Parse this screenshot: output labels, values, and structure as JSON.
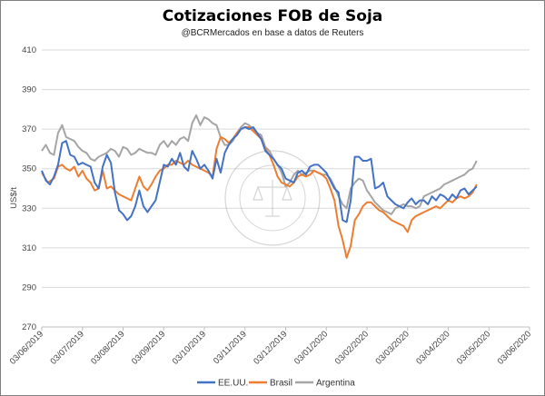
{
  "chart_data": {
    "type": "line",
    "title": "Cotizaciones FOB de Soja",
    "subtitle": "@BCRMercados en base a datos de Reuters",
    "ylabel": "US$/t",
    "xlabel": "",
    "ylim": [
      270,
      410
    ],
    "yticks": [
      270,
      290,
      310,
      330,
      350,
      370,
      390,
      410
    ],
    "xtick_labels": [
      "03/06/2019",
      "03/07/2019",
      "03/08/2019",
      "03/09/2019",
      "03/10/2019",
      "03/11/2019",
      "03/12/2019",
      "03/01/2020",
      "03/02/2020",
      "03/03/2020",
      "03/04/2020",
      "03/05/2020",
      "03/06/2020"
    ],
    "grid": "horizontal",
    "legend_position": "bottom",
    "watermark": "BOLSA DE COMERCIO DE ROSARIO",
    "series": [
      {
        "name": "EE.UU.",
        "color": "#4472C4",
        "points": [
          [
            0.0,
            349
          ],
          [
            0.2,
            344
          ],
          [
            0.4,
            342
          ],
          [
            0.6,
            346
          ],
          [
            0.8,
            352
          ],
          [
            1.0,
            363
          ],
          [
            1.2,
            364
          ],
          [
            1.4,
            357
          ],
          [
            1.6,
            356
          ],
          [
            1.8,
            352
          ],
          [
            2.0,
            353
          ],
          [
            2.2,
            352
          ],
          [
            2.4,
            351
          ],
          [
            2.6,
            343
          ],
          [
            2.8,
            340
          ],
          [
            3.0,
            351
          ],
          [
            3.2,
            357
          ],
          [
            3.4,
            353
          ],
          [
            3.6,
            338
          ],
          [
            3.8,
            329
          ],
          [
            4.0,
            327
          ],
          [
            4.2,
            324
          ],
          [
            4.4,
            326
          ],
          [
            4.6,
            331
          ],
          [
            4.8,
            339
          ],
          [
            5.0,
            331
          ],
          [
            5.2,
            328
          ],
          [
            5.4,
            331
          ],
          [
            5.6,
            334
          ],
          [
            5.8,
            343
          ],
          [
            6.0,
            352
          ],
          [
            6.2,
            351
          ],
          [
            6.4,
            355
          ],
          [
            6.6,
            352
          ],
          [
            6.8,
            358
          ],
          [
            7.0,
            351
          ],
          [
            7.2,
            349
          ],
          [
            7.4,
            359
          ],
          [
            7.6,
            355
          ],
          [
            7.8,
            350
          ],
          [
            8.0,
            352
          ],
          [
            8.2,
            349
          ],
          [
            8.4,
            345
          ],
          [
            8.6,
            355
          ],
          [
            8.8,
            348
          ],
          [
            9.0,
            358
          ],
          [
            9.2,
            362
          ],
          [
            9.4,
            365
          ],
          [
            9.6,
            367
          ],
          [
            9.8,
            370
          ],
          [
            10.0,
            371
          ],
          [
            10.2,
            370
          ],
          [
            10.4,
            371
          ],
          [
            10.6,
            368
          ],
          [
            10.8,
            365
          ],
          [
            11.0,
            359
          ],
          [
            11.2,
            357
          ],
          [
            11.4,
            355
          ],
          [
            11.6,
            352
          ],
          [
            11.8,
            350
          ],
          [
            12.0,
            345
          ],
          [
            12.2,
            344
          ],
          [
            12.4,
            343
          ],
          [
            12.6,
            348
          ],
          [
            12.8,
            349
          ],
          [
            13.0,
            347
          ],
          [
            13.2,
            351
          ],
          [
            13.4,
            352
          ],
          [
            13.6,
            352
          ],
          [
            13.8,
            350
          ],
          [
            14.0,
            348
          ],
          [
            14.2,
            344
          ],
          [
            14.4,
            340
          ],
          [
            14.6,
            338
          ],
          [
            14.8,
            324
          ],
          [
            15.0,
            323
          ],
          [
            15.2,
            334
          ],
          [
            15.4,
            356
          ],
          [
            15.6,
            356
          ],
          [
            15.8,
            354
          ],
          [
            16.0,
            354
          ],
          [
            16.2,
            355
          ],
          [
            16.4,
            340
          ],
          [
            16.6,
            341
          ],
          [
            16.8,
            343
          ],
          [
            17.0,
            336
          ],
          [
            17.2,
            334
          ],
          [
            17.4,
            332
          ],
          [
            17.6,
            331
          ],
          [
            17.8,
            330
          ],
          [
            18.0,
            333
          ],
          [
            18.2,
            335
          ],
          [
            18.4,
            332
          ],
          [
            18.6,
            334
          ],
          [
            18.8,
            334
          ],
          [
            19.0,
            332
          ],
          [
            19.2,
            336
          ],
          [
            19.4,
            334
          ],
          [
            19.6,
            337
          ],
          [
            19.8,
            336
          ],
          [
            20.0,
            334
          ],
          [
            20.2,
            337
          ],
          [
            20.4,
            335
          ],
          [
            20.6,
            339
          ],
          [
            20.8,
            340
          ],
          [
            21.0,
            337
          ],
          [
            21.2,
            339
          ],
          [
            21.4,
            341
          ]
        ]
      },
      {
        "name": "Brasil",
        "color": "#ED7D31",
        "points": [
          [
            0.0,
            348
          ],
          [
            0.3,
            343
          ],
          [
            0.6,
            345
          ],
          [
            0.8,
            351
          ],
          [
            1.0,
            352
          ],
          [
            1.2,
            350
          ],
          [
            1.4,
            349
          ],
          [
            1.6,
            351
          ],
          [
            1.8,
            346
          ],
          [
            2.0,
            349
          ],
          [
            2.2,
            345
          ],
          [
            2.4,
            343
          ],
          [
            2.6,
            339
          ],
          [
            2.8,
            340
          ],
          [
            3.0,
            349
          ],
          [
            3.2,
            340
          ],
          [
            3.4,
            341
          ],
          [
            3.6,
            339
          ],
          [
            3.8,
            337
          ],
          [
            4.0,
            336
          ],
          [
            4.2,
            335
          ],
          [
            4.4,
            334
          ],
          [
            4.6,
            340
          ],
          [
            4.8,
            346
          ],
          [
            5.0,
            341
          ],
          [
            5.2,
            339
          ],
          [
            5.4,
            342
          ],
          [
            5.6,
            346
          ],
          [
            5.8,
            349
          ],
          [
            6.0,
            350
          ],
          [
            6.2,
            352
          ],
          [
            6.4,
            352
          ],
          [
            6.6,
            354
          ],
          [
            6.8,
            353
          ],
          [
            7.0,
            352
          ],
          [
            7.2,
            354
          ],
          [
            7.4,
            352
          ],
          [
            7.6,
            351
          ],
          [
            7.8,
            350
          ],
          [
            8.0,
            349
          ],
          [
            8.2,
            348
          ],
          [
            8.4,
            346
          ],
          [
            8.6,
            360
          ],
          [
            8.8,
            366
          ],
          [
            9.0,
            365
          ],
          [
            9.2,
            363
          ],
          [
            9.4,
            365
          ],
          [
            9.6,
            368
          ],
          [
            9.8,
            370
          ],
          [
            10.0,
            371
          ],
          [
            10.2,
            371
          ],
          [
            10.4,
            369
          ],
          [
            10.6,
            367
          ],
          [
            10.8,
            365
          ],
          [
            11.0,
            360
          ],
          [
            11.2,
            357
          ],
          [
            11.4,
            352
          ],
          [
            11.6,
            346
          ],
          [
            11.8,
            343
          ],
          [
            12.0,
            342
          ],
          [
            12.2,
            341
          ],
          [
            12.4,
            343
          ],
          [
            12.6,
            346
          ],
          [
            12.8,
            347
          ],
          [
            13.0,
            346
          ],
          [
            13.2,
            347
          ],
          [
            13.4,
            349
          ],
          [
            13.6,
            348
          ],
          [
            13.8,
            347
          ],
          [
            14.0,
            345
          ],
          [
            14.2,
            340
          ],
          [
            14.4,
            334
          ],
          [
            14.6,
            321
          ],
          [
            14.8,
            314
          ],
          [
            15.0,
            305
          ],
          [
            15.2,
            311
          ],
          [
            15.4,
            324
          ],
          [
            15.6,
            327
          ],
          [
            15.8,
            331
          ],
          [
            16.0,
            333
          ],
          [
            16.2,
            333
          ],
          [
            16.4,
            331
          ],
          [
            16.6,
            329
          ],
          [
            16.8,
            328
          ],
          [
            17.0,
            326
          ],
          [
            17.2,
            324
          ],
          [
            17.4,
            323
          ],
          [
            17.6,
            322
          ],
          [
            17.8,
            321
          ],
          [
            18.0,
            318
          ],
          [
            18.2,
            324
          ],
          [
            18.4,
            326
          ],
          [
            18.6,
            327
          ],
          [
            18.8,
            328
          ],
          [
            19.0,
            329
          ],
          [
            19.2,
            330
          ],
          [
            19.4,
            331
          ],
          [
            19.6,
            330
          ],
          [
            19.8,
            332
          ],
          [
            20.0,
            334
          ],
          [
            20.2,
            333
          ],
          [
            20.4,
            335
          ],
          [
            20.6,
            336
          ],
          [
            20.8,
            335
          ],
          [
            21.0,
            336
          ],
          [
            21.2,
            338
          ],
          [
            21.4,
            342
          ]
        ]
      },
      {
        "name": "Argentina",
        "color": "#A5A5A5",
        "points": [
          [
            0.0,
            359
          ],
          [
            0.2,
            362
          ],
          [
            0.4,
            358
          ],
          [
            0.6,
            357
          ],
          [
            0.8,
            368
          ],
          [
            1.0,
            372
          ],
          [
            1.2,
            366
          ],
          [
            1.4,
            365
          ],
          [
            1.6,
            364
          ],
          [
            1.8,
            361
          ],
          [
            2.0,
            359
          ],
          [
            2.2,
            358
          ],
          [
            2.4,
            355
          ],
          [
            2.6,
            354
          ],
          [
            2.8,
            356
          ],
          [
            3.0,
            357
          ],
          [
            3.2,
            358
          ],
          [
            3.4,
            360
          ],
          [
            3.6,
            359
          ],
          [
            3.8,
            356
          ],
          [
            4.0,
            361
          ],
          [
            4.2,
            360
          ],
          [
            4.4,
            357
          ],
          [
            4.6,
            358
          ],
          [
            4.8,
            360
          ],
          [
            5.0,
            359
          ],
          [
            5.2,
            358
          ],
          [
            5.4,
            358
          ],
          [
            5.6,
            357
          ],
          [
            5.8,
            362
          ],
          [
            6.0,
            364
          ],
          [
            6.2,
            361
          ],
          [
            6.4,
            364
          ],
          [
            6.6,
            362
          ],
          [
            6.8,
            365
          ],
          [
            7.0,
            366
          ],
          [
            7.2,
            364
          ],
          [
            7.4,
            373
          ],
          [
            7.6,
            377
          ],
          [
            7.8,
            372
          ],
          [
            8.0,
            376
          ],
          [
            8.2,
            375
          ],
          [
            8.4,
            373
          ],
          [
            8.6,
            372
          ],
          [
            8.8,
            366
          ],
          [
            9.0,
            362
          ],
          [
            9.2,
            362
          ],
          [
            9.4,
            364
          ],
          [
            9.6,
            368
          ],
          [
            9.8,
            371
          ],
          [
            10.0,
            373
          ],
          [
            10.2,
            372
          ],
          [
            10.4,
            370
          ],
          [
            10.6,
            368
          ],
          [
            10.8,
            367
          ],
          [
            11.0,
            361
          ],
          [
            11.2,
            359
          ],
          [
            11.4,
            355
          ],
          [
            11.6,
            352
          ],
          [
            11.8,
            348
          ],
          [
            12.0,
            341
          ],
          [
            12.2,
            343
          ],
          [
            12.4,
            347
          ],
          [
            12.6,
            349
          ],
          [
            12.8,
            347
          ],
          [
            13.0,
            348
          ],
          [
            13.2,
            349
          ],
          [
            13.4,
            349
          ],
          [
            13.6,
            348
          ],
          [
            13.8,
            347
          ],
          [
            14.0,
            347
          ],
          [
            14.2,
            345
          ],
          [
            14.4,
            341
          ],
          [
            14.6,
            336
          ],
          [
            14.8,
            332
          ],
          [
            15.0,
            330
          ],
          [
            15.2,
            340
          ],
          [
            15.4,
            343
          ],
          [
            15.6,
            345
          ],
          [
            15.8,
            344
          ],
          [
            16.0,
            339
          ],
          [
            16.2,
            336
          ],
          [
            16.4,
            333
          ],
          [
            16.6,
            331
          ],
          [
            16.8,
            329
          ],
          [
            17.0,
            328
          ],
          [
            17.2,
            327
          ],
          [
            17.4,
            330
          ],
          [
            17.6,
            331
          ],
          [
            17.8,
            332
          ],
          [
            18.0,
            331
          ],
          [
            18.2,
            331
          ],
          [
            18.4,
            330
          ],
          [
            18.6,
            331
          ],
          [
            18.8,
            336
          ],
          [
            19.0,
            337
          ],
          [
            19.2,
            338
          ],
          [
            19.4,
            339
          ],
          [
            19.6,
            340
          ],
          [
            19.8,
            342
          ],
          [
            20.0,
            343
          ],
          [
            20.2,
            344
          ],
          [
            20.4,
            345
          ],
          [
            20.6,
            346
          ],
          [
            20.8,
            347
          ],
          [
            21.0,
            349
          ],
          [
            21.2,
            350
          ],
          [
            21.4,
            354
          ]
        ]
      }
    ]
  }
}
